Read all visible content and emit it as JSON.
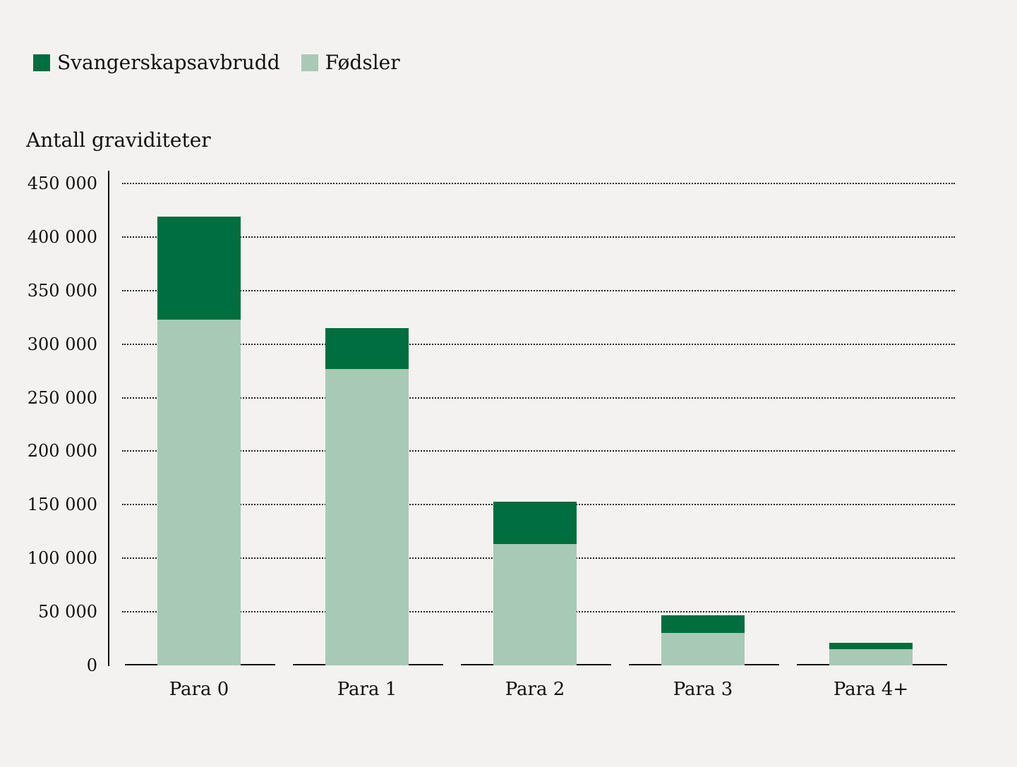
{
  "legend": [
    {
      "label": "Svangerskapsavbrudd",
      "color": "#006e3e"
    },
    {
      "label": "Fødsler",
      "color": "#a8cab5"
    }
  ],
  "y_axis_title": "Antall graviditeter",
  "y_ticks": [
    "0",
    "50 000",
    "100 000",
    "150 000",
    "200 000",
    "250 000",
    "300 000",
    "350 000",
    "400 000",
    "450 000"
  ],
  "x_labels": [
    "Para 0",
    "Para 1",
    "Para 2",
    "Para 3",
    "Para 4+"
  ],
  "chart_data": {
    "type": "bar",
    "stacked": true,
    "title": "",
    "xlabel": "",
    "ylabel": "Antall graviditeter",
    "ylim": [
      0,
      450000
    ],
    "yticks": [
      0,
      50000,
      100000,
      150000,
      200000,
      250000,
      300000,
      350000,
      400000,
      450000
    ],
    "categories": [
      "Para 0",
      "Para 1",
      "Para 2",
      "Para 3",
      "Para 4+"
    ],
    "series": [
      {
        "name": "Fødsler",
        "color": "#a8cab5",
        "values": [
          323000,
          277000,
          113000,
          30000,
          15000
        ]
      },
      {
        "name": "Svangerskapsavbrudd",
        "color": "#006e3e",
        "values": [
          96000,
          38000,
          40000,
          17000,
          6000
        ]
      }
    ],
    "grid": "horizontal dotted",
    "legend_position": "top-left"
  }
}
